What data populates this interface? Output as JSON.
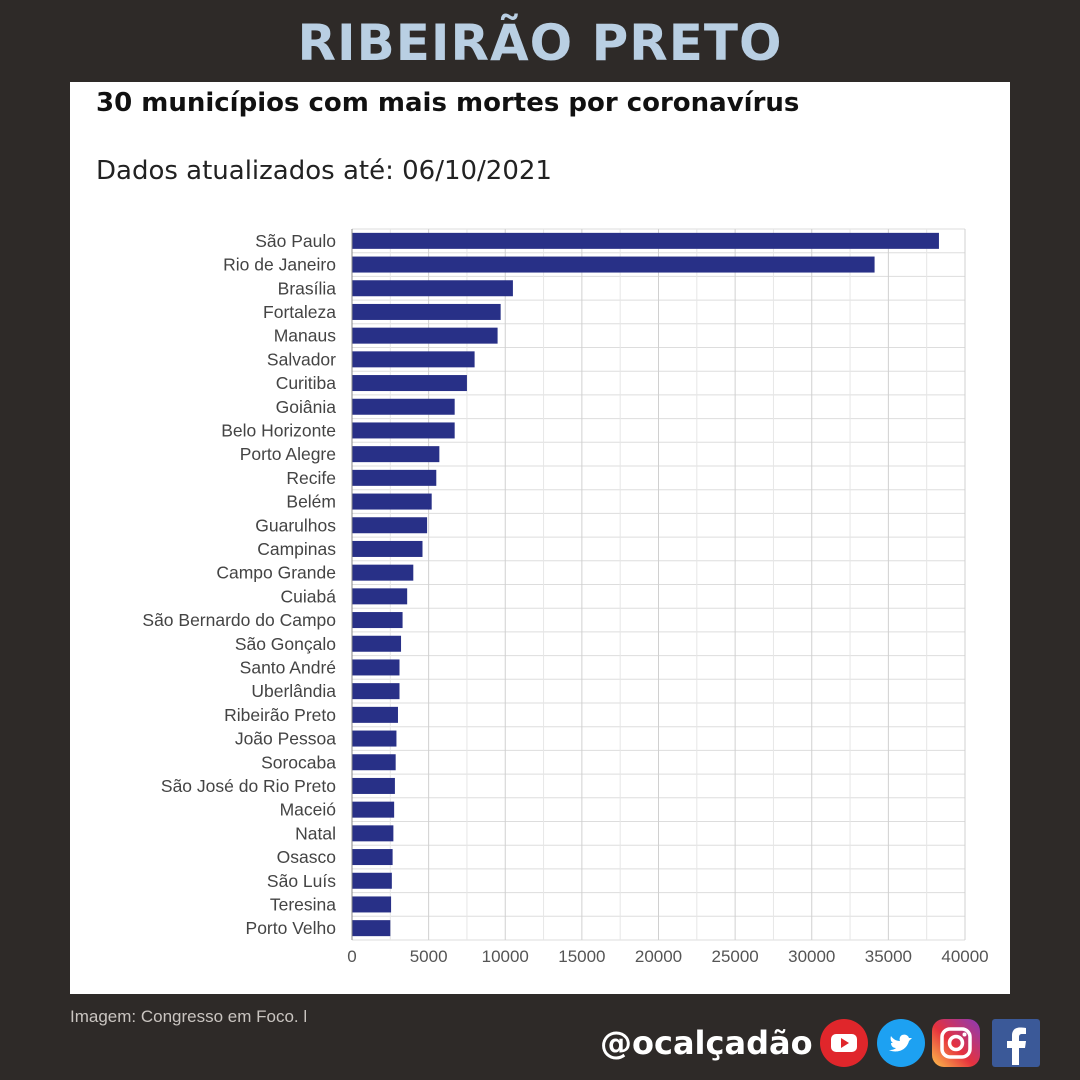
{
  "page_title": "RIBEIRÃO PRETO",
  "caption": "Imagem: Congresso em Foco. l",
  "handle": "@ocalçadão",
  "social_icons": [
    "youtube-icon",
    "twitter-icon",
    "instagram-icon",
    "facebook-icon"
  ],
  "colors": {
    "background": "#2e2a28",
    "title": "#b9cfe3",
    "bar": "#283087"
  },
  "chart_data": {
    "type": "bar",
    "orientation": "horizontal",
    "title": "30 municípios com mais mortes por coronavírus",
    "subtitle": "Dados atualizados até: 06/10/2021",
    "xlabel": "",
    "ylabel": "",
    "xlim": [
      0,
      40000
    ],
    "xticks": [
      "0",
      "5000",
      "10000",
      "15000",
      "20000",
      "25000",
      "30000",
      "35000",
      "40000"
    ],
    "grid": true,
    "categories": [
      "São Paulo",
      "Rio de Janeiro",
      "Brasília",
      "Fortaleza",
      "Manaus",
      "Salvador",
      "Curitiba",
      "Goiânia",
      "Belo Horizonte",
      "Porto Alegre",
      "Recife",
      "Belém",
      "Guarulhos",
      "Campinas",
      "Campo Grande",
      "Cuiabá",
      "São Bernardo do Campo",
      "São Gonçalo",
      "Santo André",
      "Uberlândia",
      "Ribeirão Preto",
      "João Pessoa",
      "Sorocaba",
      "São José do Rio Preto",
      "Maceió",
      "Natal",
      "Osasco",
      "São Luís",
      "Teresina",
      "Porto Velho"
    ],
    "values": [
      38300,
      34100,
      10500,
      9700,
      9500,
      8000,
      7500,
      6700,
      6700,
      5700,
      5500,
      5200,
      4900,
      4600,
      4000,
      3600,
      3300,
      3200,
      3100,
      3100,
      3000,
      2900,
      2850,
      2800,
      2750,
      2700,
      2650,
      2600,
      2550,
      2500
    ]
  }
}
